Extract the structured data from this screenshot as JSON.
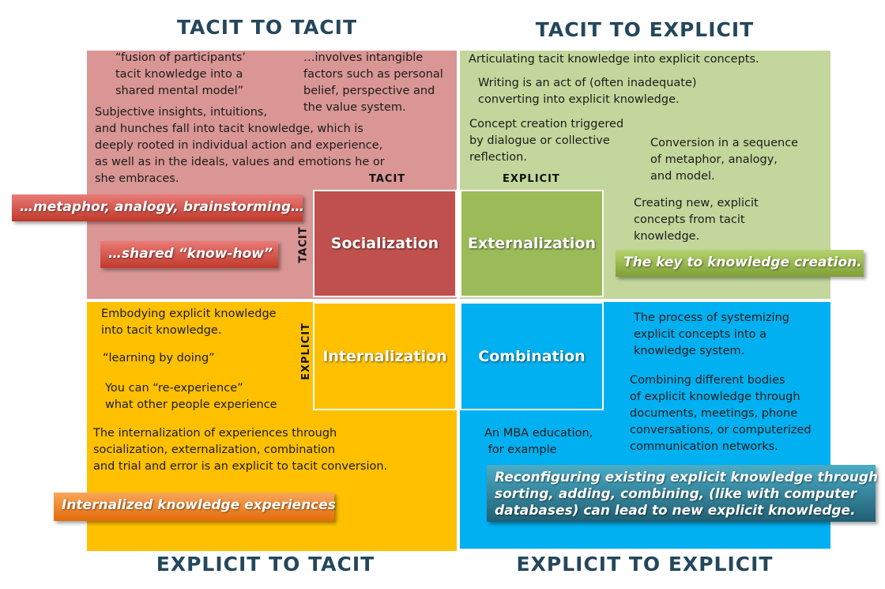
{
  "headers": [
    "TACIT TO TACIT",
    "TACIT TO EXPLICIT",
    "EXPLICIT TO TACIT",
    "EXPLICIT TO EXPLICIT"
  ],
  "axis_labels": {
    "top_tacit": "TACIT",
    "top_explicit": "EXPLICIT",
    "side_tacit": "TACIT",
    "side_explicit": "EXPLICIT"
  },
  "modes": [
    "Socialization",
    "Externalization",
    "Internalization",
    "Combination"
  ],
  "notes": [
    {
      "lines": [
        "“fusion of participants’",
        "tacit knowledge into a",
        "shared mental model”"
      ]
    },
    {
      "lines": [
        "…involves intangible",
        "factors such as personal",
        "belief, perspective and",
        "the value system."
      ]
    },
    {
      "lines": [
        "Subjective insights, intuitions,",
        "and hunches fall into tacit knowledge, which is",
        "deeply rooted in individual action and experience,",
        "as well as in the ideals, values and emotions he or",
        "she embraces."
      ]
    },
    {
      "lines": [
        "Articulating tacit knowledge into explicit concepts."
      ]
    },
    {
      "lines": [
        "Writing is an act of (often inadequate)",
        "converting into explicit knowledge."
      ]
    },
    {
      "lines": [
        "Concept creation triggered",
        "by dialogue or collective",
        "reflection."
      ]
    },
    {
      "lines": [
        "Conversion in a sequence",
        "of metaphor, analogy,",
        "and model."
      ]
    },
    {
      "lines": [
        "Creating new, explicit",
        "concepts from tacit",
        "knowledge."
      ]
    },
    {
      "lines": [
        "Embodying explicit knowledge",
        "into tacit knowledge."
      ]
    },
    {
      "lines": [
        "“learning by doing”"
      ]
    },
    {
      "lines": [
        "You can “re-experience”",
        "what other people experience"
      ]
    },
    {
      "lines": [
        "The internalization of experiences through",
        "socialization, externalization, combination",
        "and trial and error is an explicit to tacit conversion."
      ]
    },
    {
      "lines": [
        "The process of systemizing",
        "explicit concepts into a",
        "knowledge system."
      ]
    },
    {
      "lines": [
        "Combining different bodies",
        "of explicit knowledge through",
        "documents, meetings, phone",
        "conversations, or computerized",
        "communication networks."
      ]
    },
    {
      "lines": [
        "An MBA education,",
        " for example"
      ]
    }
  ],
  "callouts": [
    {
      "lines": [
        "…metaphor, analogy, brainstorming…"
      ]
    },
    {
      "lines": [
        "…shared “know-how”"
      ]
    },
    {
      "lines": [
        "The key to knowledge creation."
      ]
    },
    {
      "lines": [
        "Internalized knowledge experiences"
      ]
    },
    {
      "lines": [
        "Reconfiguring existing explicit knowledge through",
        "sorting, adding, combining, (like with computer",
        "databases) can lead to new explicit knowledge."
      ]
    }
  ]
}
